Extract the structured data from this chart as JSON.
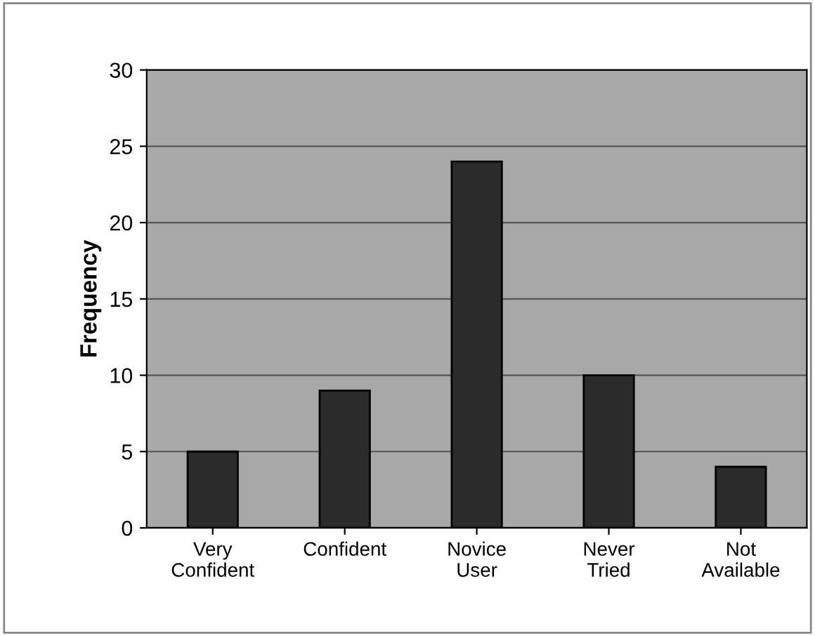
{
  "chart_data": {
    "type": "bar",
    "ylabel": "Frequency",
    "categories": [
      "Very\nConfident",
      "Confident",
      "Novice\nUser",
      "Never\nTried",
      "Not\nAvailable"
    ],
    "values": [
      5,
      9,
      24,
      10,
      4
    ],
    "color": "#2b2b2b",
    "ylim": [
      0,
      30
    ],
    "yticks": [
      0,
      5,
      10,
      15,
      20,
      25,
      30
    ],
    "grid": "y"
  }
}
